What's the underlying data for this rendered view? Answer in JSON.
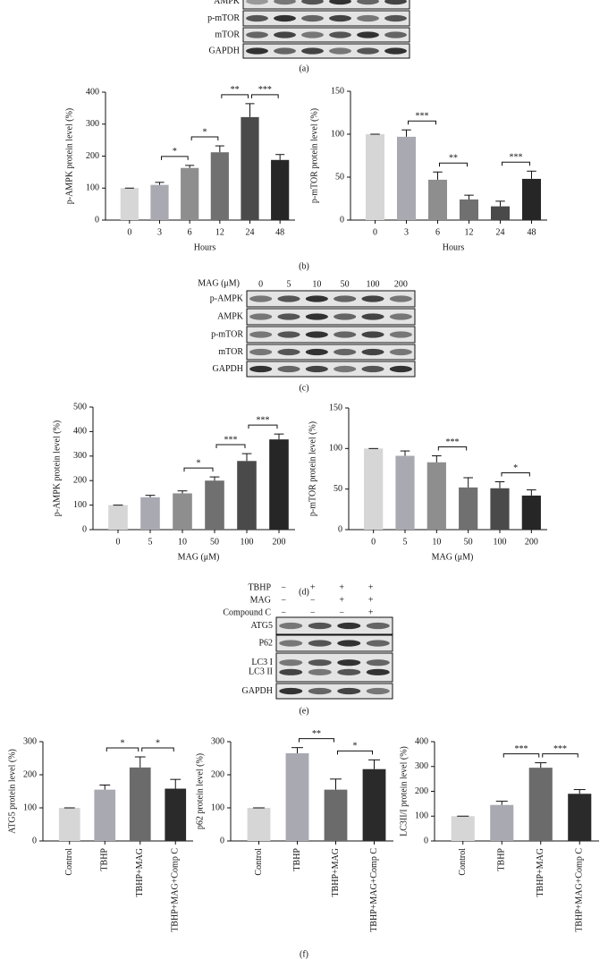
{
  "panel_labels": [
    "(a)",
    "(b)",
    "(c)",
    "(d)",
    "(e)",
    "(f)"
  ],
  "blots": {
    "a": {
      "rows": [
        "AMPK",
        "p-mTOR",
        "mTOR",
        "GAPDH"
      ]
    },
    "c": {
      "header": "MAG (μM)",
      "lanes": [
        "0",
        "5",
        "10",
        "50",
        "100",
        "200"
      ],
      "rows": [
        "p-AMPK",
        "AMPK",
        "p-mTOR",
        "mTOR",
        "GAPDH"
      ]
    },
    "e": {
      "treatments": [
        {
          "name": "TBHP",
          "signs": [
            "−",
            "+",
            "+",
            "+"
          ]
        },
        {
          "name": "MAG",
          "signs": [
            "−",
            "−",
            "+",
            "+"
          ]
        },
        {
          "name": "Compound C",
          "signs": [
            "−",
            "−",
            "−",
            "+"
          ]
        }
      ],
      "rows": [
        "ATG5",
        "P62",
        "LC3 I",
        "LC3 II",
        "GAPDH"
      ]
    }
  },
  "chart_data": [
    {
      "type": "bar",
      "ylabel": "p-AMPK protein level (%)",
      "xlabel": "Hours",
      "categories": [
        "0",
        "3",
        "6",
        "12",
        "24",
        "48"
      ],
      "values": [
        100,
        110,
        163,
        212,
        322,
        188
      ],
      "errors": [
        0,
        8,
        8,
        20,
        42,
        17
      ],
      "colors": [
        "#d6d6d6",
        "#a9a9b2",
        "#8e8e8e",
        "#707070",
        "#4a4a4a",
        "#262626"
      ],
      "ylim": [
        0,
        400
      ],
      "yticks": [
        0,
        100,
        200,
        300,
        400
      ],
      "significance": [
        {
          "between": [
            "3",
            "6"
          ],
          "label": "*"
        },
        {
          "between": [
            "6",
            "12"
          ],
          "label": "*"
        },
        {
          "between": [
            "12",
            "24"
          ],
          "label": "**"
        },
        {
          "between": [
            "24",
            "48"
          ],
          "label": "***"
        }
      ]
    },
    {
      "type": "bar",
      "ylabel": "p-mTOR protein level (%)",
      "xlabel": "Hours",
      "categories": [
        "0",
        "3",
        "6",
        "12",
        "24",
        "48"
      ],
      "values": [
        100,
        97,
        47,
        24,
        16,
        48
      ],
      "errors": [
        0,
        8,
        9,
        5,
        6,
        9
      ],
      "colors": [
        "#d6d6d6",
        "#a9a9b2",
        "#8e8e8e",
        "#707070",
        "#4a4a4a",
        "#262626"
      ],
      "ylim": [
        0,
        150
      ],
      "yticks": [
        0,
        50,
        100,
        150
      ],
      "significance": [
        {
          "between": [
            "3",
            "6"
          ],
          "label": "***"
        },
        {
          "between": [
            "6",
            "12"
          ],
          "label": "**"
        },
        {
          "between": [
            "24",
            "48"
          ],
          "label": "***"
        }
      ]
    },
    {
      "type": "bar",
      "ylabel": "p-AMPK protein level (%)",
      "xlabel": "MAG (μM)",
      "categories": [
        "0",
        "5",
        "10",
        "50",
        "100",
        "200"
      ],
      "values": [
        100,
        132,
        148,
        200,
        280,
        368
      ],
      "errors": [
        0,
        8,
        10,
        15,
        30,
        22
      ],
      "colors": [
        "#d6d6d6",
        "#a9a9b2",
        "#8e8e8e",
        "#707070",
        "#4a4a4a",
        "#262626"
      ],
      "ylim": [
        0,
        500
      ],
      "yticks": [
        0,
        100,
        200,
        300,
        400,
        500
      ],
      "significance": [
        {
          "between": [
            "10",
            "50"
          ],
          "label": "*"
        },
        {
          "between": [
            "50",
            "100"
          ],
          "label": "***"
        },
        {
          "between": [
            "100",
            "200"
          ],
          "label": "***"
        }
      ]
    },
    {
      "type": "bar",
      "ylabel": "p-mTOR protein level (%)",
      "xlabel": "MAG (μM)",
      "categories": [
        "0",
        "5",
        "10",
        "50",
        "100",
        "200"
      ],
      "values": [
        100,
        91,
        83,
        52,
        51,
        42
      ],
      "errors": [
        0,
        6,
        8,
        12,
        8,
        7
      ],
      "colors": [
        "#d6d6d6",
        "#a9a9b2",
        "#8e8e8e",
        "#707070",
        "#4a4a4a",
        "#262626"
      ],
      "ylim": [
        0,
        150
      ],
      "yticks": [
        0,
        50,
        100,
        150
      ],
      "significance": [
        {
          "between": [
            "10",
            "50"
          ],
          "label": "***"
        },
        {
          "between": [
            "100",
            "200"
          ],
          "label": "*"
        }
      ]
    },
    {
      "type": "bar",
      "ylabel": "ATG5 protein level (%)",
      "categories": [
        "Control",
        "TBHP",
        "TBHP+MAG",
        "TBHP+MAG+Comp C"
      ],
      "values": [
        100,
        155,
        222,
        158
      ],
      "errors": [
        0,
        14,
        32,
        28
      ],
      "colors": [
        "#d6d6d6",
        "#a9a9b2",
        "#6b6b6b",
        "#2a2a2a"
      ],
      "ylim": [
        0,
        300
      ],
      "yticks": [
        0,
        100,
        200,
        300
      ],
      "significance": [
        {
          "between": [
            "TBHP",
            "TBHP+MAG"
          ],
          "label": "*"
        },
        {
          "between": [
            "TBHP+MAG",
            "TBHP+MAG+Comp C"
          ],
          "label": "*"
        }
      ]
    },
    {
      "type": "bar",
      "ylabel": "p62 protein level (%)",
      "categories": [
        "Control",
        "TBHP",
        "TBHP+MAG",
        "TBHP+MAG+Comp C"
      ],
      "values": [
        100,
        265,
        155,
        217
      ],
      "errors": [
        0,
        17,
        32,
        28
      ],
      "colors": [
        "#d6d6d6",
        "#a9a9b2",
        "#6b6b6b",
        "#2a2a2a"
      ],
      "ylim": [
        0,
        300
      ],
      "yticks": [
        0,
        100,
        200,
        300
      ],
      "significance": [
        {
          "between": [
            "TBHP",
            "TBHP+MAG"
          ],
          "label": "**"
        },
        {
          "between": [
            "TBHP+MAG",
            "TBHP+MAG+Comp C"
          ],
          "label": "*"
        }
      ]
    },
    {
      "type": "bar",
      "ylabel": "LC3II/I protein level (%)",
      "categories": [
        "Control",
        "TBHP",
        "TBHP+MAG",
        "TBHP+MAG+Comp C"
      ],
      "values": [
        100,
        145,
        295,
        190
      ],
      "errors": [
        0,
        15,
        20,
        17
      ],
      "colors": [
        "#d6d6d6",
        "#a9a9b2",
        "#6b6b6b",
        "#2a2a2a"
      ],
      "ylim": [
        0,
        400
      ],
      "yticks": [
        0,
        100,
        200,
        300,
        400
      ],
      "significance": [
        {
          "between": [
            "TBHP",
            "TBHP+MAG"
          ],
          "label": "***"
        },
        {
          "between": [
            "TBHP+MAG",
            "TBHP+MAG+Comp C"
          ],
          "label": "***"
        }
      ]
    }
  ]
}
